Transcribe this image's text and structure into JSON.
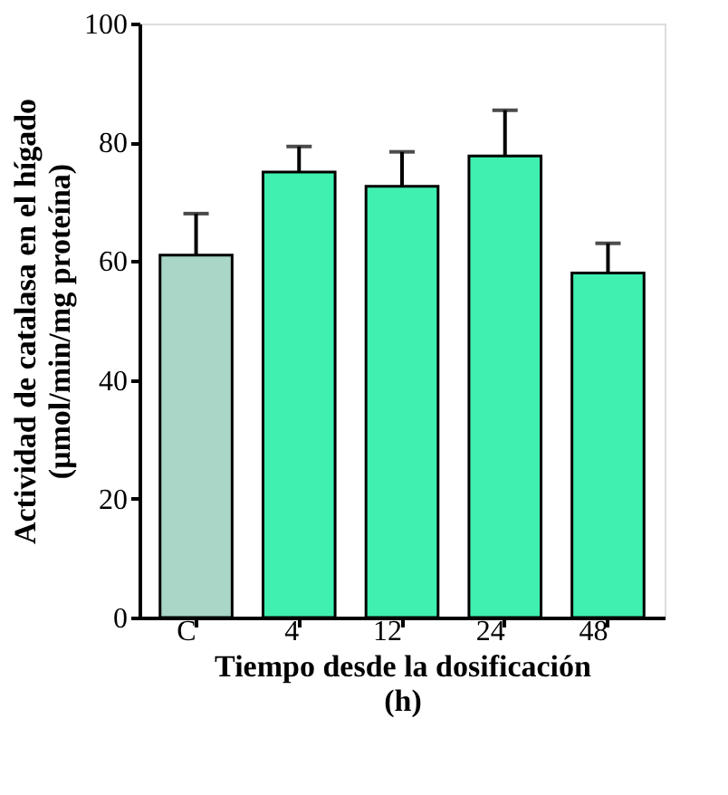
{
  "chart_data": {
    "type": "bar",
    "xlabel": "Tiempo desde la dosificación\n(h)",
    "ylabel": "Actividad de catalasa en el hígado\n(μmol/min/mg proteína)",
    "categories": [
      "C",
      "4",
      "12",
      "24",
      "48"
    ],
    "values": [
      61,
      75,
      72.6,
      77.7,
      58
    ],
    "colors": [
      "#a9d6c6",
      "#40f0b0",
      "#40f0b0",
      "#40f0b0",
      "#40f0b0"
    ],
    "errors": [
      [
        61,
        68
      ],
      [
        75,
        79.3
      ],
      [
        72.6,
        78.4
      ],
      [
        77.7,
        85.4
      ],
      [
        58,
        63
      ]
    ],
    "ylim": [
      0,
      100
    ],
    "yticks": [
      0,
      20,
      40,
      60,
      80,
      100
    ],
    "grid": false
  }
}
